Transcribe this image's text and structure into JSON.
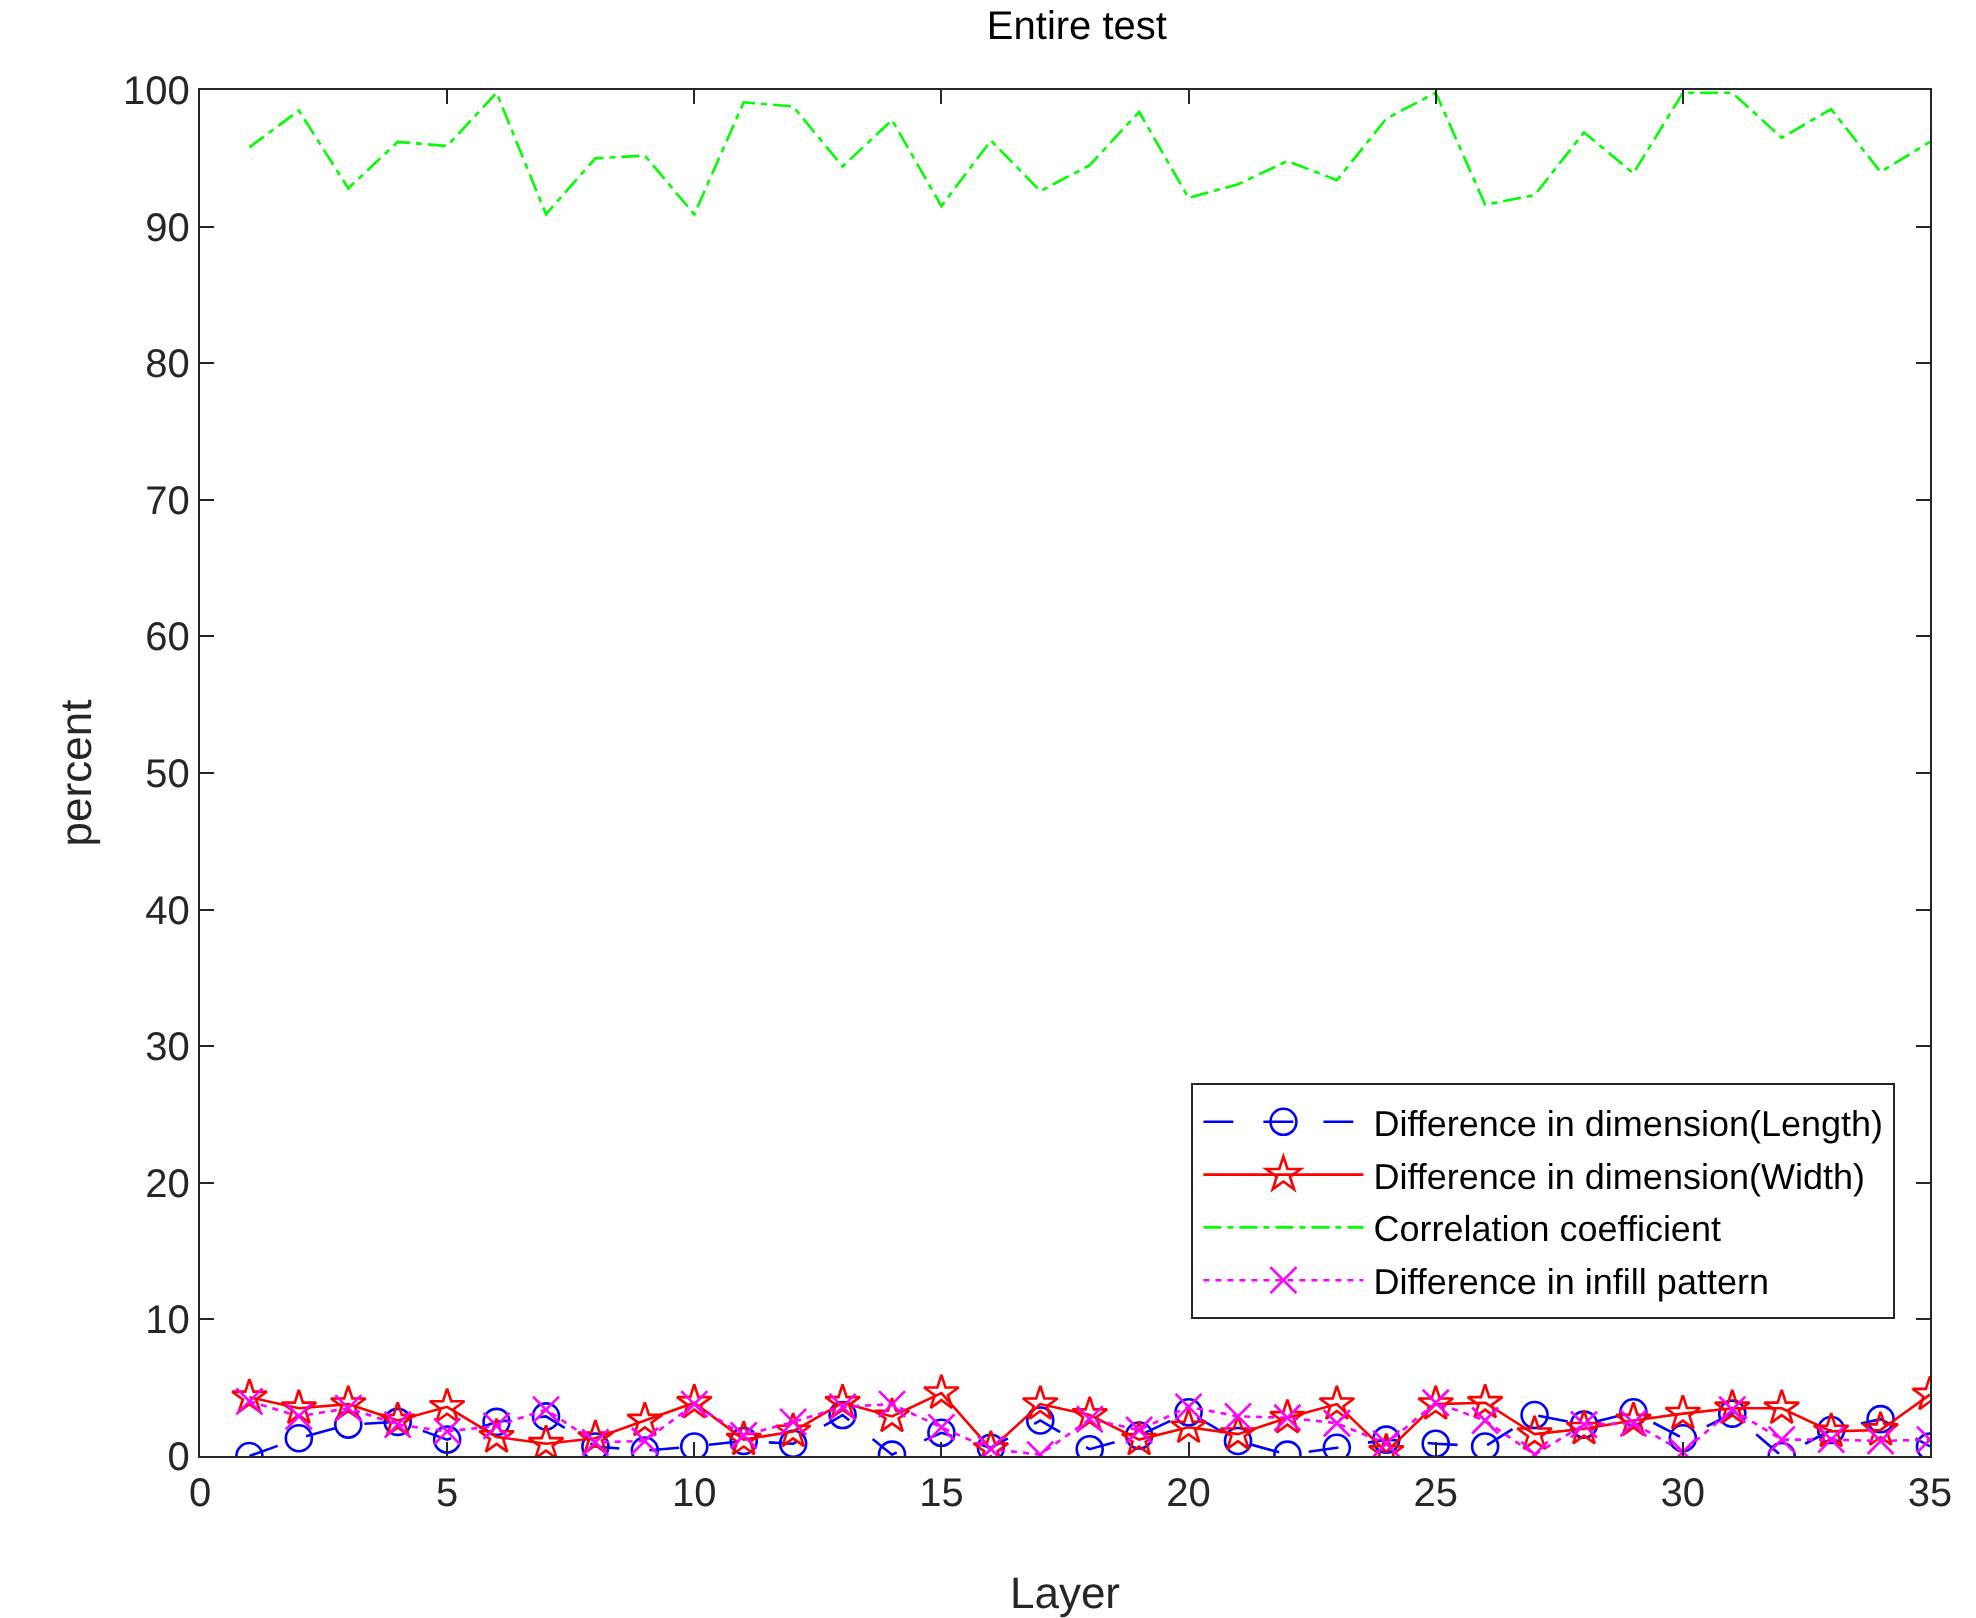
{
  "chart_data": {
    "type": "line",
    "title": "Entire test",
    "xlabel": "Layer",
    "ylabel": "percent",
    "x": [
      1,
      2,
      3,
      4,
      5,
      6,
      7,
      8,
      9,
      10,
      11,
      12,
      13,
      14,
      15,
      16,
      17,
      18,
      19,
      20,
      21,
      22,
      23,
      24,
      25,
      26,
      27,
      28,
      29,
      30,
      31,
      32,
      33,
      34,
      35
    ],
    "series": [
      {
        "name": "Difference in dimension(Length)",
        "color": "#0000ff",
        "marker": "circle",
        "line_style": "dashed",
        "values": [
          0,
          1.3,
          2.3,
          2.5,
          1.2,
          2.5,
          2.9,
          0.7,
          0.4,
          0.7,
          1.1,
          0.9,
          3.0,
          0.1,
          1.7,
          0.6,
          2.6,
          0.5,
          1.5,
          3.2,
          1.1,
          0.1,
          0.6,
          1.2,
          0.9,
          0.7,
          3.0,
          2.3,
          3.2,
          1.3,
          3.1,
          0,
          1.9,
          2.7,
          0.7
        ]
      },
      {
        "name": "Difference in dimension(Width)",
        "color": "#ff0000",
        "marker": "star",
        "line_style": "solid",
        "values": [
          4.3,
          3.5,
          3.8,
          2.6,
          3.6,
          1.4,
          0.9,
          1.3,
          2.6,
          3.9,
          1.2,
          1.8,
          3.9,
          2.9,
          4.6,
          0.5,
          3.8,
          3.0,
          1.2,
          2.1,
          1.6,
          2.8,
          3.8,
          0.3,
          3.8,
          3.9,
          1.6,
          2.0,
          2.6,
          3.1,
          3.5,
          3.5,
          1.8,
          1.9,
          4.5
        ]
      },
      {
        "name": "Correlation coefficient",
        "color": "#00ff00",
        "marker": "none",
        "line_style": "dashdot",
        "values": [
          95.8,
          98.5,
          92.8,
          96.2,
          95.9,
          99.8,
          90.9,
          95.0,
          95.2,
          90.9,
          99.1,
          98.8,
          94.4,
          97.8,
          91.5,
          96.3,
          92.6,
          94.5,
          98.4,
          92.1,
          93.1,
          94.8,
          93.4,
          97.9,
          99.8,
          91.6,
          92.3,
          96.9,
          93.9,
          99.8,
          99.8,
          96.5,
          98.6,
          94.0,
          96.2
        ]
      },
      {
        "name": "Difference in infill pattern",
        "color": "#ff00ff",
        "marker": "cross",
        "line_style": "dotted",
        "values": [
          4.0,
          2.9,
          3.5,
          2.3,
          1.8,
          2.2,
          3.4,
          1.0,
          1.1,
          3.8,
          1.5,
          2.5,
          3.6,
          3.8,
          2.1,
          0.5,
          0.1,
          2.7,
          1.9,
          3.6,
          2.9,
          2.8,
          2.4,
          0.9,
          3.9,
          2.6,
          0.1,
          2.3,
          2.4,
          0.3,
          3.4,
          1.2,
          1.2,
          1.1,
          1.2
        ]
      }
    ],
    "xlim": [
      0,
      35
    ],
    "xticks": [
      0,
      5,
      10,
      15,
      20,
      25,
      30,
      35
    ],
    "ylim": [
      0,
      100
    ],
    "yticks": [
      0,
      10,
      20,
      30,
      40,
      50,
      60,
      70,
      80,
      90,
      100
    ],
    "grid": false,
    "legend": "bottom right"
  }
}
